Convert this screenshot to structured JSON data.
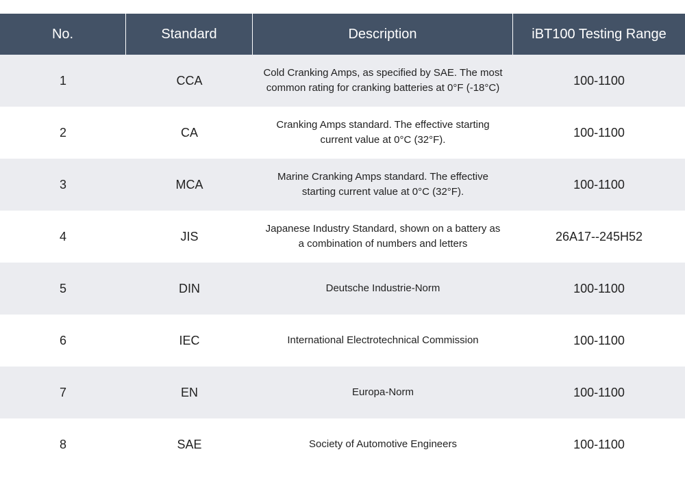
{
  "table": {
    "headers": [
      "No.",
      "Standard",
      "Description",
      "iBT100 Testing Range"
    ],
    "rows": [
      {
        "no": "1",
        "standard": "CCA",
        "description": "Cold Cranking Amps, as specified by SAE. The most common rating for cranking batteries at 0°F (-18°C)",
        "range": "100-1100"
      },
      {
        "no": "2",
        "standard": "CA",
        "description": "Cranking Amps standard. The effective starting current value at 0°C (32°F).",
        "range": "100-1100"
      },
      {
        "no": "3",
        "standard": "MCA",
        "description": "Marine Cranking Amps standard. The effective starting current value at 0°C (32°F).",
        "range": "100-1100"
      },
      {
        "no": "4",
        "standard": "JIS",
        "description": "Japanese Industry Standard, shown on a battery as a combination of numbers and letters",
        "range": "26A17--245H52"
      },
      {
        "no": "5",
        "standard": "DIN",
        "description": "Deutsche Industrie-Norm",
        "range": "100-1100"
      },
      {
        "no": "6",
        "standard": "IEC",
        "description": "International Electrotechnical Commission",
        "range": "100-1100"
      },
      {
        "no": "7",
        "standard": "EN",
        "description": "Europa-Norm",
        "range": "100-1100"
      },
      {
        "no": "8",
        "standard": "SAE",
        "description": "Society of Automotive Engineers",
        "range": "100-1100"
      }
    ]
  },
  "colors": {
    "header_background": "#435266",
    "header_text": "#ffffff",
    "shaded_row": "#ebecf0",
    "plain_row": "#ffffff"
  }
}
